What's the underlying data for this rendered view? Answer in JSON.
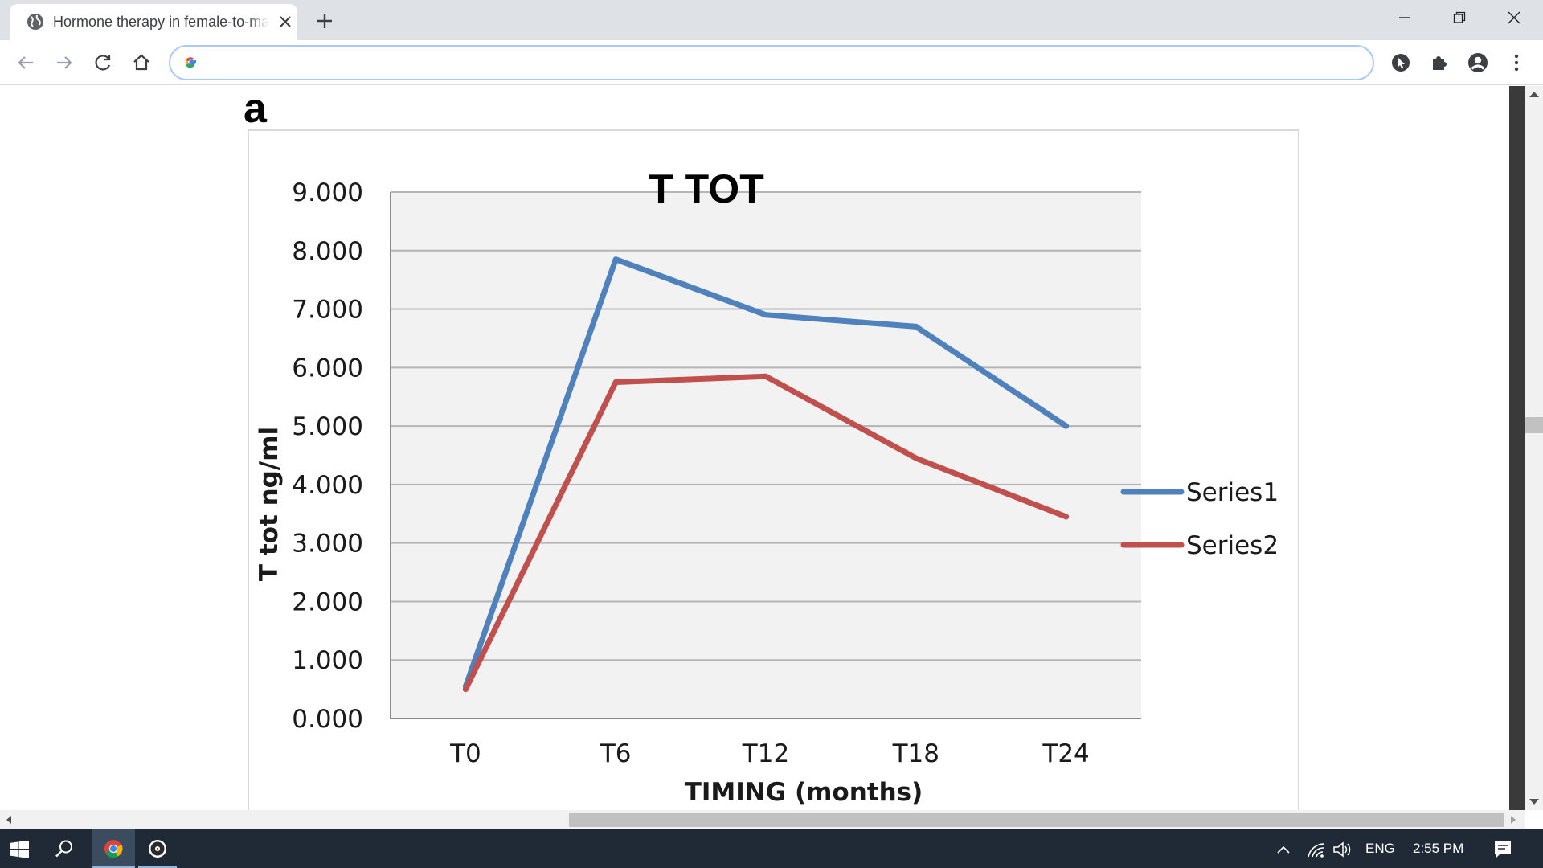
{
  "browser": {
    "tab_title": "Hormone therapy in female-to-male transsexuals",
    "address_value": "",
    "icons": [
      "globe-icon",
      "close-icon",
      "plus-icon",
      "back-icon",
      "forward-icon",
      "reload-icon",
      "home-icon",
      "google-icon",
      "cursor-extension-icon",
      "puzzle-icon",
      "account-icon",
      "menu-icon",
      "minimize-icon",
      "restore-icon",
      "window-close-icon"
    ]
  },
  "figure": {
    "panel_label": "a"
  },
  "chart_data": {
    "type": "line",
    "title": "T TOT",
    "xlabel": "TIMING (months)",
    "ylabel": "T tot ng/ml",
    "categories": [
      "T0",
      "T6",
      "T12",
      "T18",
      "T24"
    ],
    "yticks": [
      "0.000",
      "1.000",
      "2.000",
      "3.000",
      "4.000",
      "5.000",
      "6.000",
      "7.000",
      "8.000",
      "9.000"
    ],
    "ylim": [
      0,
      9
    ],
    "grid": true,
    "legend_position": "right",
    "series": [
      {
        "name": "Series1",
        "color": "#4f81bd",
        "values": [
          0.55,
          7.85,
          6.9,
          6.7,
          5.0
        ]
      },
      {
        "name": "Series2",
        "color": "#c0504d",
        "values": [
          0.5,
          5.75,
          5.85,
          4.45,
          3.45
        ]
      }
    ]
  },
  "taskbar": {
    "language": "ENG",
    "time": "2:55 PM",
    "icons": [
      "windows-start-icon",
      "search-icon",
      "chrome-icon",
      "media-app-icon",
      "chevron-up-icon",
      "wifi-icon",
      "speaker-icon",
      "notification-icon"
    ]
  }
}
